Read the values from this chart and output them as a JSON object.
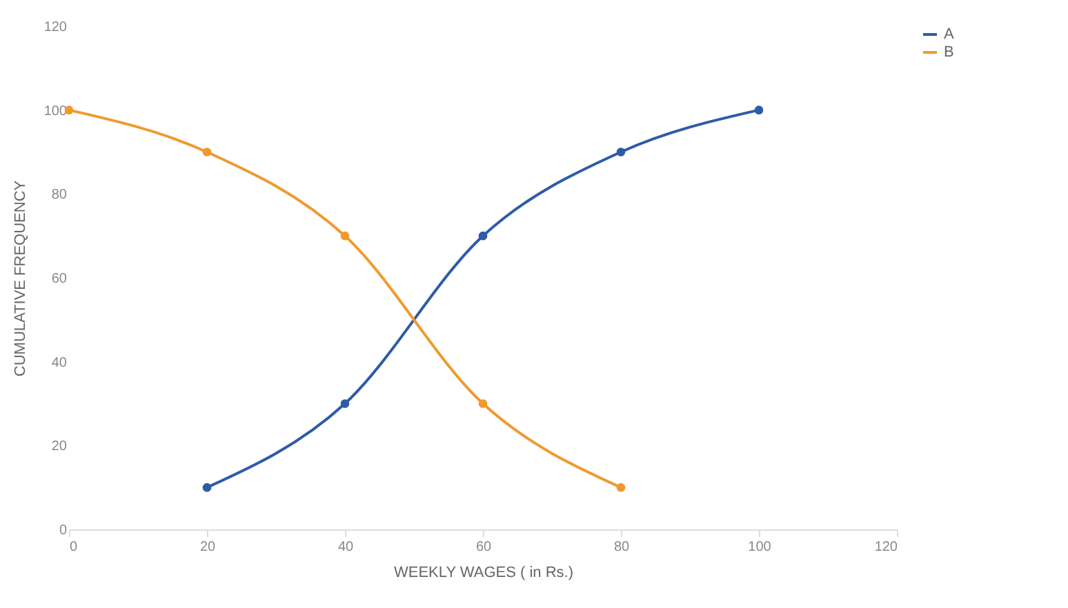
{
  "chart_data": {
    "type": "line",
    "xlabel": "WEEKLY WAGES ( in Rs.)",
    "ylabel": "CUMULATIVE FREQUENCY",
    "series": [
      {
        "name": "A",
        "color": "#2e5ba8",
        "x": [
          20,
          40,
          60,
          80,
          100
        ],
        "values": [
          10,
          30,
          70,
          90,
          100
        ]
      },
      {
        "name": "B",
        "color": "#ef9a2e",
        "x": [
          0,
          20,
          40,
          60,
          80
        ],
        "values": [
          100,
          90,
          70,
          30,
          10
        ]
      }
    ],
    "xlim": [
      0,
      120
    ],
    "xticks": [
      0,
      20,
      40,
      60,
      80,
      100,
      120
    ],
    "ylim": [
      0,
      120
    ],
    "yticks": [
      0,
      20,
      40,
      60,
      80,
      100,
      120
    ],
    "grid": false,
    "legend": "right",
    "marker": "circle",
    "line_style": "solid"
  }
}
